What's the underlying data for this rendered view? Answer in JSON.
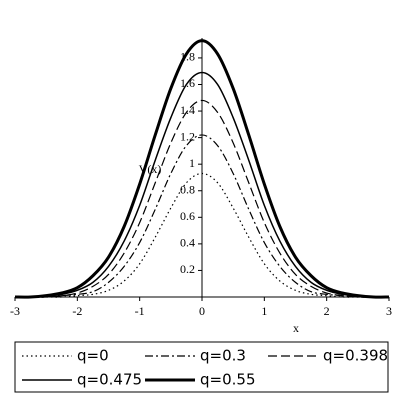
{
  "chart_data": {
    "type": "line",
    "y_label": "V(x)",
    "x_label": "x",
    "x": [
      -3,
      -2.75,
      -2.5,
      -2.25,
      -2,
      -1.75,
      -1.5,
      -1.25,
      -1,
      -0.75,
      -0.5,
      -0.25,
      0,
      0.25,
      0.5,
      0.75,
      1,
      1.25,
      1.5,
      1.75,
      2,
      2.25,
      2.5,
      2.75,
      3
    ],
    "series": [
      {
        "name": "q=0",
        "color": "#000000",
        "dash": "dotted",
        "linewidth": 1.2,
        "values": [
          0,
          0,
          0,
          0,
          0.01,
          0.02,
          0.05,
          0.12,
          0.25,
          0.45,
          0.67,
          0.86,
          0.93,
          0.86,
          0.67,
          0.45,
          0.25,
          0.12,
          0.05,
          0.02,
          0.01,
          0,
          0,
          0,
          0
        ]
      },
      {
        "name": "q=0.3",
        "color": "#000000",
        "dash": "dashdot",
        "linewidth": 1.2,
        "values": [
          0,
          0,
          0,
          0.01,
          0.02,
          0.04,
          0.11,
          0.23,
          0.41,
          0.66,
          0.93,
          1.14,
          1.22,
          1.14,
          0.93,
          0.66,
          0.41,
          0.23,
          0.11,
          0.04,
          0.02,
          0.01,
          0,
          0,
          0
        ]
      },
      {
        "name": "q=0.398",
        "color": "#000000",
        "dash": "dashed",
        "linewidth": 1.2,
        "values": [
          0,
          0,
          0,
          0.01,
          0.03,
          0.08,
          0.17,
          0.33,
          0.56,
          0.86,
          1.16,
          1.39,
          1.48,
          1.39,
          1.16,
          0.86,
          0.56,
          0.33,
          0.17,
          0.08,
          0.03,
          0.01,
          0,
          0,
          0
        ]
      },
      {
        "name": "q=0.475",
        "color": "#000000",
        "dash": "solid",
        "linewidth": 1.5,
        "values": [
          0,
          0,
          0.01,
          0.02,
          0.05,
          0.11,
          0.23,
          0.42,
          0.69,
          1.03,
          1.35,
          1.6,
          1.69,
          1.6,
          1.35,
          1.03,
          0.69,
          0.42,
          0.23,
          0.11,
          0.05,
          0.02,
          0.01,
          0,
          0
        ]
      },
      {
        "name": "q=0.55",
        "color": "#000000",
        "dash": "solid",
        "linewidth": 3,
        "values": [
          0,
          0,
          0.01,
          0.03,
          0.07,
          0.16,
          0.3,
          0.53,
          0.85,
          1.22,
          1.57,
          1.83,
          1.93,
          1.83,
          1.57,
          1.22,
          0.85,
          0.53,
          0.3,
          0.16,
          0.07,
          0.03,
          0.01,
          0,
          0
        ]
      }
    ],
    "xlim": [
      -3,
      3
    ],
    "ylim": [
      0,
      1.95
    ],
    "xticks": [
      -3,
      -2,
      -1,
      0,
      1,
      2,
      3
    ],
    "yticks": [
      0.2,
      0.4,
      0.6,
      0.8,
      1,
      1.2,
      1.4,
      1.6,
      1.8
    ]
  }
}
